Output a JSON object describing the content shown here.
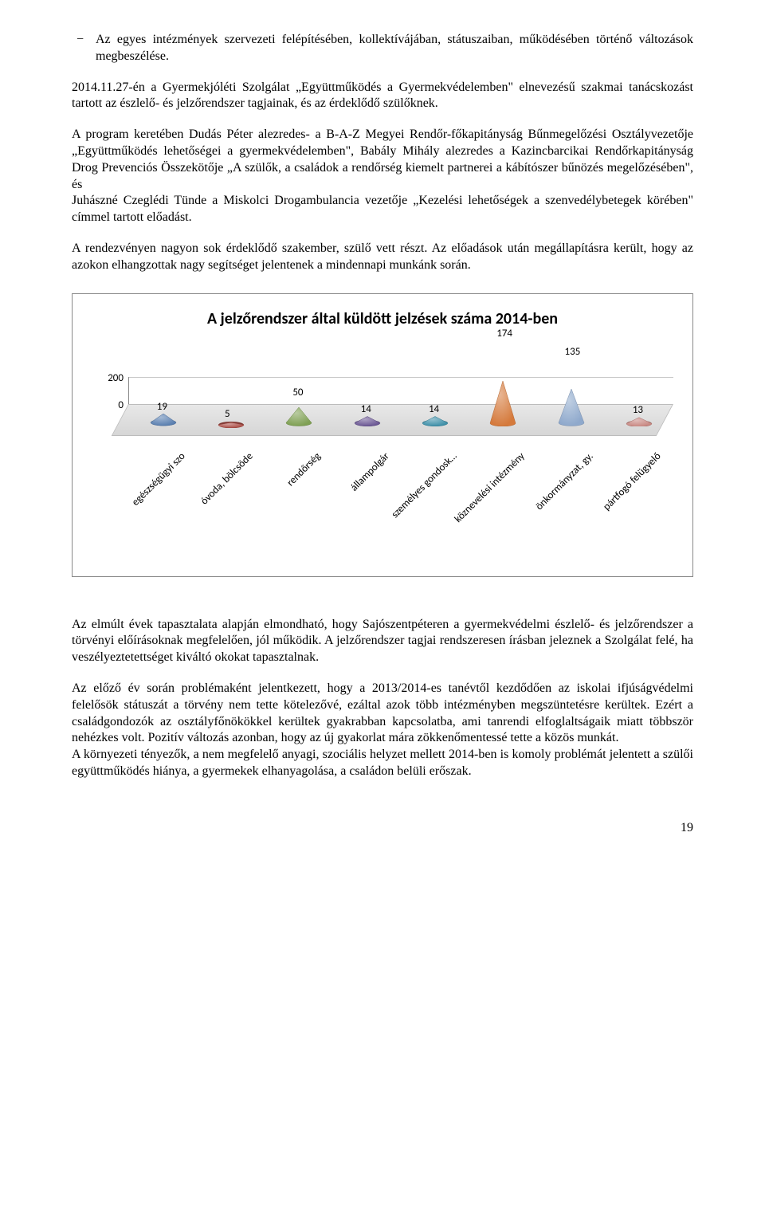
{
  "bullet": {
    "dash": "−",
    "text": "Az egyes intézmények szervezeti felépítésében, kollektívájában, státuszaiban, működésében történő változások megbeszélése."
  },
  "para1": "2014.11.27-én a Gyermekjóléti Szolgálat „Együttműködés a Gyermekvédelemben\" elnevezésű szakmai tanácskozást tartott az észlelő- és jelzőrendszer tagjainak, és az érdeklődő szülőknek.",
  "para2": "A program keretében Dudás Péter alezredes- a B-A-Z Megyei Rendőr-főkapitányság Bűnmegelőzési Osztályvezetője „Együttműködés lehetőségei a gyermekvédelemben\", Babály Mihály alezredes a Kazincbarcikai Rendőrkapitányság Drog Prevenciós Összekötője „A szülők, a családok a rendőrség kiemelt partnerei a kábítószer bűnözés megelőzésében\", és",
  "para2b": "Juhászné Czeglédi Tünde a Miskolci Drogambulancia vezetője „Kezelési lehetőségek a szenvedélybetegek körében\" címmel tartott előadást.",
  "para3": "A rendezvényen nagyon sok érdeklődő szakember, szülő vett részt. Az előadások után megállapításra került, hogy az azokon elhangzottak nagy segítséget jelentenek a mindennapi munkánk során.",
  "chart": {
    "title": "A jelzőrendszer által küldött jelzések száma 2014-ben",
    "ymax": 200,
    "yticks": [
      0,
      200
    ],
    "categories": [
      "egészségügyi szo",
      "óvoda, bölcsöde",
      "rendőrség",
      "állampolgár",
      "személyes gondosk…",
      "köznevelési intézmény",
      "önkormányzat, gy.",
      "pártfogó felügyelő"
    ],
    "values": [
      19,
      5,
      50,
      14,
      14,
      174,
      135,
      13
    ],
    "cone_colors": [
      "#5a7fb0",
      "#aa4b44",
      "#7fa054",
      "#6a5693",
      "#3d8fa8",
      "#d57a3c",
      "#8fa9cc",
      "#c78680"
    ],
    "background": "#ffffff",
    "floor_color": "#dcdcdc",
    "grid_color": "#c8c8c8",
    "label_fontsize": 13,
    "title_fontsize": 20
  },
  "para4": "Az elmúlt évek tapasztalata alapján elmondható, hogy Sajószentpéteren a gyermekvédelmi észlelő- és jelzőrendszer a törvényi előírásoknak megfelelően, jól működik. A jelzőrendszer tagjai rendszeresen írásban jeleznek a Szolgálat felé, ha veszélyeztetettséget kiváltó okokat tapasztalnak.",
  "para5": "Az előző év során problémaként jelentkezett, hogy a 2013/2014-es tanévtől kezdődően az iskolai ifjúságvédelmi felelősök státuszát a törvény nem tette kötelezővé, ezáltal azok több intézményben megszüntetésre kerültek. Ezért a családgondozók az osztályfőnökökkel kerültek gyakrabban kapcsolatba, ami tanrendi elfoglaltságaik miatt többször nehézkes volt. Pozitív változás azonban, hogy az új gyakorlat mára zökkenőmentessé tette a közös munkát.",
  "para5b": "A környezeti tényezők, a nem megfelelő anyagi, szociális helyzet mellett 2014-ben is komoly problémát jelentett a szülői együttműködés hiánya, a gyermekek elhanyagolása, a családon belüli erőszak.",
  "page_number": "19"
}
